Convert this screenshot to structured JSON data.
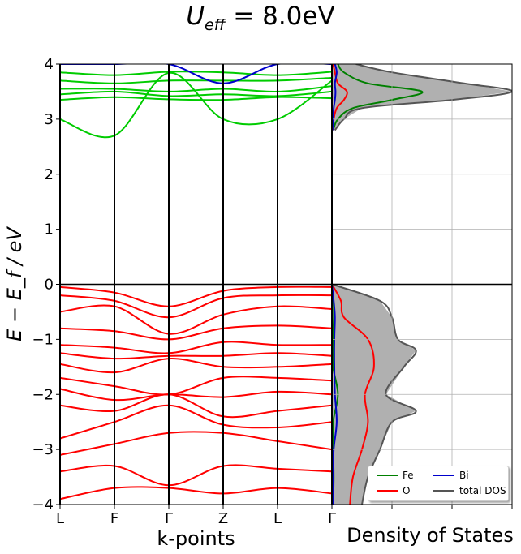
{
  "figure": {
    "title_main": "U",
    "title_sub": "eff",
    "title_rest": " = 8.0eV"
  },
  "chart_data": [
    {
      "type": "line",
      "name": "band-structure",
      "ylabel": "E − E_f   /   eV",
      "xlabel": "k-points",
      "ylim": [
        -4,
        4
      ],
      "yticks": [
        "−4",
        "−3",
        "−2",
        "−1",
        "0",
        "1",
        "2",
        "3",
        "4"
      ],
      "yticks_values": [
        -4,
        -3,
        -2,
        -1,
        0,
        1,
        2,
        3,
        4
      ],
      "kpoint_labels": [
        "L",
        "F",
        "Γ",
        "Z",
        "L",
        "Γ"
      ],
      "kpoint_positions": [
        0,
        1,
        2,
        3,
        4,
        5
      ],
      "fermi_level": 0,
      "series": [
        {
          "color": "#00cc00",
          "band": "conduction",
          "values": [
            3.0,
            2.7,
            3.84,
            3.0,
            3.0,
            3.7
          ]
        },
        {
          "color": "#00cc00",
          "band": "conduction",
          "values": [
            3.35,
            3.4,
            3.36,
            3.35,
            3.4,
            3.38
          ]
        },
        {
          "color": "#00cc00",
          "band": "conduction",
          "values": [
            3.45,
            3.5,
            3.42,
            3.45,
            3.42,
            3.5
          ]
        },
        {
          "color": "#00cc00",
          "band": "conduction",
          "values": [
            3.55,
            3.55,
            3.5,
            3.55,
            3.5,
            3.6
          ]
        },
        {
          "color": "#00cc00",
          "band": "conduction",
          "values": [
            3.7,
            3.65,
            3.7,
            3.7,
            3.7,
            3.75
          ]
        },
        {
          "color": "#00cc00",
          "band": "conduction",
          "values": [
            3.85,
            3.8,
            3.86,
            3.85,
            3.8,
            3.86
          ]
        },
        {
          "color": "#0000cc",
          "band": "conduction",
          "values": [
            4.0,
            4.0,
            4.0,
            3.65,
            4.0,
            4.0
          ]
        },
        {
          "color": "#ff0000",
          "band": "valence",
          "values": [
            -0.05,
            -0.15,
            -0.4,
            -0.12,
            -0.05,
            -0.05
          ]
        },
        {
          "color": "#ff0000",
          "band": "valence",
          "values": [
            -0.2,
            -0.3,
            -0.6,
            -0.25,
            -0.2,
            -0.2
          ]
        },
        {
          "color": "#ff0000",
          "band": "valence",
          "values": [
            -0.5,
            -0.4,
            -0.9,
            -0.55,
            -0.4,
            -0.45
          ]
        },
        {
          "color": "#ff0000",
          "band": "valence",
          "values": [
            -0.8,
            -0.85,
            -1.0,
            -0.8,
            -0.75,
            -0.8
          ]
        },
        {
          "color": "#ff0000",
          "band": "valence",
          "values": [
            -1.1,
            -1.15,
            -1.25,
            -1.05,
            -1.1,
            -1.1
          ]
        },
        {
          "color": "#ff0000",
          "band": "valence",
          "values": [
            -1.25,
            -1.35,
            -1.3,
            -1.3,
            -1.25,
            -1.3
          ]
        },
        {
          "color": "#ff0000",
          "band": "valence",
          "values": [
            -1.45,
            -1.6,
            -1.35,
            -1.5,
            -1.5,
            -1.45
          ]
        },
        {
          "color": "#ff0000",
          "band": "valence",
          "values": [
            -1.7,
            -1.85,
            -2.0,
            -1.7,
            -1.7,
            -1.75
          ]
        },
        {
          "color": "#ff0000",
          "band": "valence",
          "values": [
            -1.9,
            -2.1,
            -2.0,
            -2.05,
            -1.95,
            -2.0
          ]
        },
        {
          "color": "#ff0000",
          "band": "valence",
          "values": [
            -2.2,
            -2.3,
            -2.0,
            -2.4,
            -2.3,
            -2.2
          ]
        },
        {
          "color": "#ff0000",
          "band": "valence",
          "values": [
            -2.8,
            -2.5,
            -2.2,
            -2.55,
            -2.6,
            -2.5
          ]
        },
        {
          "color": "#ff0000",
          "band": "valence",
          "values": [
            -3.1,
            -2.9,
            -2.7,
            -2.7,
            -2.85,
            -3.0
          ]
        },
        {
          "color": "#ff0000",
          "band": "valence",
          "values": [
            -3.4,
            -3.3,
            -3.65,
            -3.3,
            -3.35,
            -3.4
          ]
        },
        {
          "color": "#ff0000",
          "band": "valence",
          "values": [
            -3.9,
            -3.7,
            -3.7,
            -3.8,
            -3.7,
            -3.8
          ]
        }
      ]
    },
    {
      "type": "area",
      "name": "density-of-states",
      "xlabel": "Density of States",
      "ylim": [
        -4,
        4
      ],
      "legend_position": "lower right",
      "grid": true,
      "series": [
        {
          "name": "Fe",
          "color": "#008000",
          "y": [
            -4,
            -3.5,
            -3,
            -2.5,
            -2.0,
            -1.5,
            -1.0,
            -0.6,
            -0.3,
            0,
            2.8,
            3.0,
            3.2,
            3.35,
            3.5,
            3.65,
            3.85,
            4
          ],
          "values": [
            0.02,
            0.03,
            0.02,
            0.02,
            0.1,
            0.02,
            0.02,
            0.01,
            0.01,
            0,
            0.02,
            0.1,
            0.35,
            1.0,
            1.5,
            0.6,
            0.2,
            0.1
          ]
        },
        {
          "name": "O",
          "color": "#ff0000",
          "y": [
            -4,
            -3.5,
            -3,
            -2.5,
            -2.0,
            -1.5,
            -1.0,
            -0.6,
            -0.3,
            0,
            2.8,
            3.0,
            3.2,
            3.35,
            3.5,
            3.65,
            3.85,
            4
          ],
          "values": [
            0.3,
            0.35,
            0.5,
            0.6,
            0.55,
            0.7,
            0.6,
            0.2,
            0.15,
            0,
            0.01,
            0.03,
            0.08,
            0.2,
            0.25,
            0.1,
            0.05,
            0.02
          ]
        },
        {
          "name": "Bi",
          "color": "#0000cc",
          "y": [
            -4,
            -3.5,
            -3,
            -2.5,
            -2.0,
            -1.5,
            -1.0,
            -0.6,
            -0.3,
            0,
            2.8,
            3.0,
            3.2,
            3.35,
            3.5,
            3.65,
            3.85,
            4
          ],
          "values": [
            0.02,
            0.02,
            0.03,
            0.08,
            0.05,
            0.04,
            0.04,
            0.05,
            0.03,
            0,
            0.01,
            0.02,
            0.03,
            0.05,
            0.06,
            0.05,
            0.08,
            0.05
          ]
        },
        {
          "name": "total DOS",
          "color": "#555555",
          "y": [
            -4,
            -3.5,
            -3,
            -2.5,
            -2.3,
            -2.0,
            -1.5,
            -1.2,
            -1.0,
            -0.6,
            -0.3,
            0,
            2.8,
            3.0,
            3.2,
            3.35,
            3.5,
            3.65,
            3.85,
            4
          ],
          "values": [
            0.5,
            0.6,
            0.8,
            1.0,
            1.4,
            0.9,
            1.2,
            1.4,
            1.1,
            1.0,
            0.8,
            0,
            0.05,
            0.2,
            0.5,
            2.0,
            3.0,
            2.2,
            1.0,
            0.4
          ]
        }
      ],
      "xlim": [
        0,
        3
      ]
    }
  ]
}
